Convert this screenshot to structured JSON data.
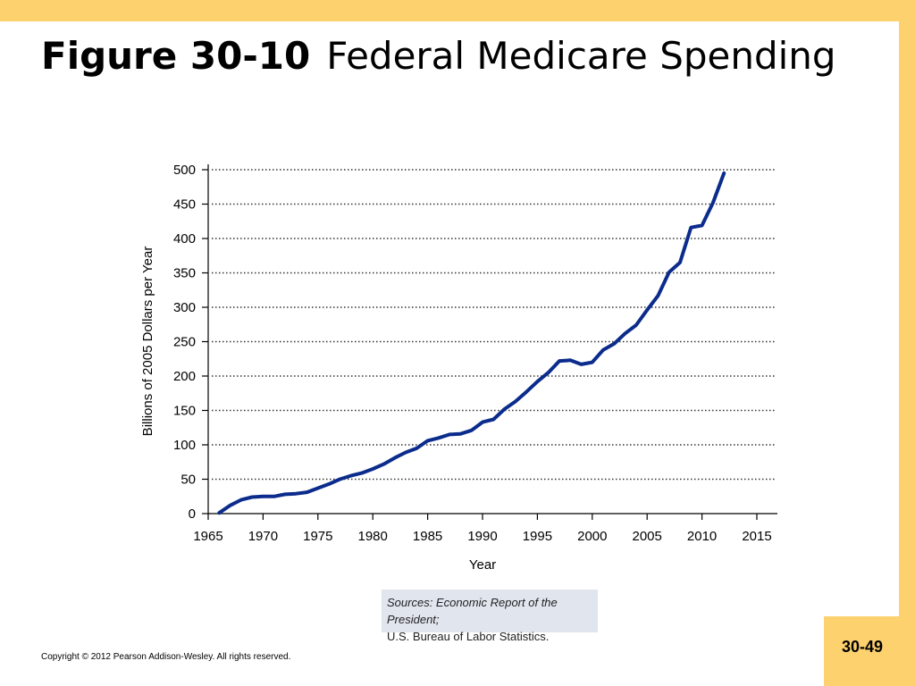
{
  "slide": {
    "title_number": "Figure 30-10",
    "title_text": "Federal Medicare Spending",
    "page_number": "30-49",
    "copyright": "Copyright © 2012 Pearson Addison-Wesley. All rights reserved.",
    "sources_line1": "Sources: Economic Report of the President;",
    "sources_line2": "U.S. Bureau of Labor Statistics.",
    "frame_color": "#FDD16E"
  },
  "chart_data": {
    "type": "line",
    "xlabel": "Year",
    "ylabel": "Billions of 2005 Dollars per Year",
    "xlim": [
      1965,
      2015
    ],
    "ylim": [
      0,
      500
    ],
    "x_ticks": [
      1965,
      1970,
      1975,
      1980,
      1985,
      1990,
      1995,
      2000,
      2005,
      2010,
      2015
    ],
    "y_ticks": [
      0,
      50,
      100,
      150,
      200,
      250,
      300,
      350,
      400,
      450,
      500
    ],
    "grid": "horizontal-dotted",
    "line_color": "#0B2C8C",
    "series": [
      {
        "x": [
          1966,
          1967,
          1968,
          1969,
          1970,
          1971,
          1972,
          1973,
          1974,
          1975,
          1976,
          1977,
          1978,
          1979,
          1980,
          1981,
          1982,
          1983,
          1984,
          1985,
          1986,
          1987,
          1988,
          1989,
          1990,
          1991,
          1992,
          1993,
          1994,
          1995,
          1996,
          1997,
          1998,
          1999,
          2000,
          2001,
          2002,
          2003,
          2004,
          2005,
          2006,
          2007,
          2008,
          2009,
          2010,
          2011,
          2012
        ],
        "y": [
          1,
          12,
          20,
          24,
          25,
          25,
          28,
          29,
          31,
          37,
          43,
          50,
          55,
          59,
          65,
          72,
          81,
          89,
          95,
          106,
          110,
          115,
          116,
          121,
          133,
          137,
          152,
          163,
          177,
          192,
          205,
          222,
          223,
          217,
          220,
          238,
          247,
          262,
          274,
          296,
          317,
          351,
          365,
          416,
          419,
          452,
          495
        ]
      }
    ]
  }
}
